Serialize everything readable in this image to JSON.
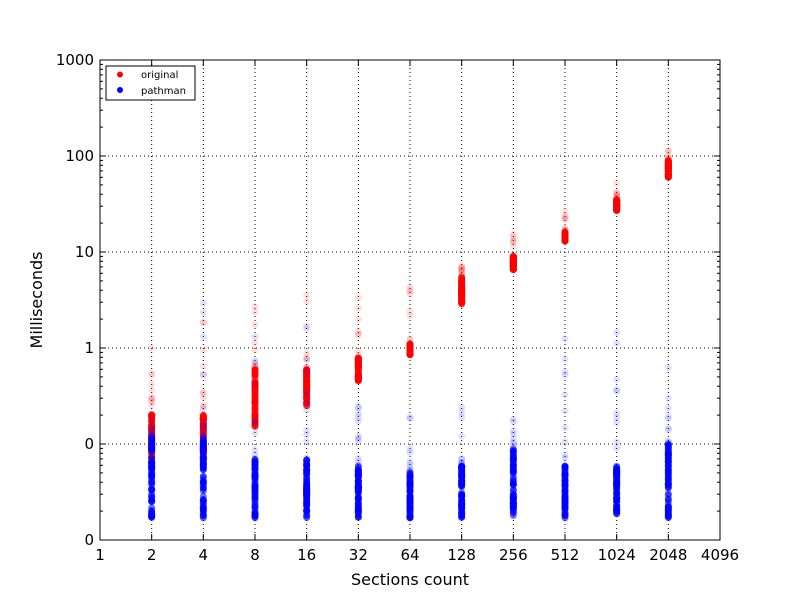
{
  "chart_data": {
    "type": "scatter",
    "title": "",
    "xlabel": "Sections count",
    "ylabel": "Milliseconds",
    "x_scale": "log2",
    "y_scale": "log10",
    "xlim": [
      1,
      4096
    ],
    "ylim": [
      0.01,
      1000
    ],
    "x_ticks": [
      1,
      2,
      4,
      8,
      16,
      32,
      64,
      128,
      256,
      512,
      1024,
      2048,
      4096
    ],
    "x_tick_labels": [
      "1",
      "2",
      "4",
      "8",
      "16",
      "32",
      "64",
      "128",
      "256",
      "512",
      "1024",
      "2048",
      "4096"
    ],
    "y_ticks": [
      0.01,
      0.1,
      1,
      10,
      100,
      1000
    ],
    "y_tick_labels": [
      "0",
      "0",
      "1",
      "10",
      "100",
      "1000"
    ],
    "grid": true,
    "legend_position": "top-left",
    "categories": [
      2,
      4,
      8,
      16,
      32,
      64,
      128,
      256,
      512,
      1024,
      2048
    ],
    "series": [
      {
        "name": "original",
        "color": "#ff0000",
        "core_ranges": [
          [
            0.06,
            0.22
          ],
          [
            0.08,
            0.2
          ],
          [
            0.15,
            0.6
          ],
          [
            0.25,
            0.6
          ],
          [
            0.45,
            0.8
          ],
          [
            0.85,
            1.1
          ],
          [
            2.8,
            5.5
          ],
          [
            6.5,
            9
          ],
          [
            13,
            16
          ],
          [
            27,
            35
          ],
          [
            60,
            90
          ]
        ],
        "outlier_ranges": [
          [
            0.22,
            1.2
          ],
          [
            0.2,
            3.2
          ],
          [
            0.6,
            2.9
          ],
          [
            0.6,
            4.7
          ],
          [
            0.8,
            6.5
          ],
          [
            1.1,
            6.8
          ],
          [
            5.5,
            7.5
          ],
          [
            9,
            16
          ],
          [
            16,
            31
          ],
          [
            35,
            75
          ],
          [
            90,
            120
          ]
        ]
      },
      {
        "name": "pathman",
        "color": "#0000ff",
        "core_ranges": [
          [
            0.017,
            0.12
          ],
          [
            0.017,
            0.12
          ],
          [
            0.017,
            0.07
          ],
          [
            0.017,
            0.07
          ],
          [
            0.017,
            0.06
          ],
          [
            0.017,
            0.05
          ],
          [
            0.017,
            0.06
          ],
          [
            0.017,
            0.09
          ],
          [
            0.017,
            0.06
          ],
          [
            0.017,
            0.06
          ],
          [
            0.017,
            0.1
          ]
        ],
        "outlier_ranges": [
          [
            0.12,
            0.2
          ],
          [
            0.12,
            3.2
          ],
          [
            0.07,
            1.5
          ],
          [
            0.07,
            1.8
          ],
          [
            0.06,
            0.27
          ],
          [
            0.05,
            0.2
          ],
          [
            0.06,
            1.5
          ],
          [
            0.09,
            0.25
          ],
          [
            0.06,
            1.4
          ],
          [
            0.06,
            2.8
          ],
          [
            0.1,
            0.7
          ]
        ]
      }
    ]
  }
}
